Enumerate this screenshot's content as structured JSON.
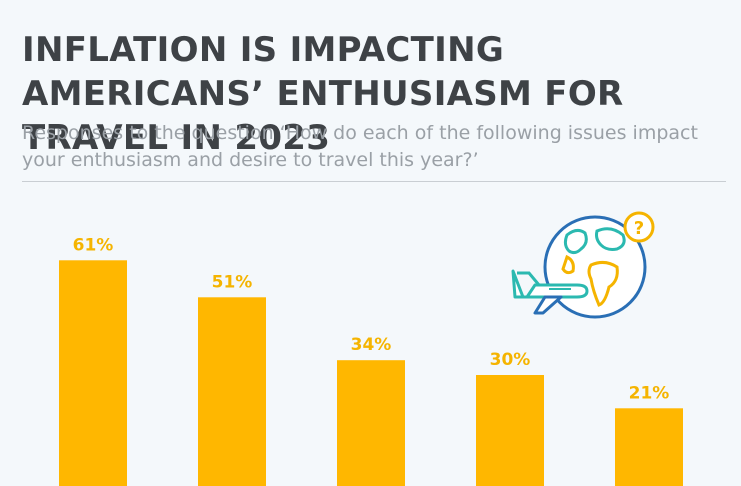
{
  "title": "INFLATION IS IMPACTING AMERICANS’ ENTHUSIASM FOR TRAVEL IN 2023",
  "subtitle": "Responses to the question ‘How do each of the following issues impact your enthusiasm and desire to travel this year?’",
  "colors": {
    "bar": "#ffb700",
    "label": "#f5b400",
    "title": "#3e4246",
    "subtitle": "#9aa0a6"
  },
  "icons": {
    "illustration": "globe-airplane-question-icon"
  },
  "chart_data": {
    "type": "bar",
    "categories": [],
    "values": [
      61,
      51,
      34,
      30,
      21
    ],
    "labels": [
      "61%",
      "51%",
      "34%",
      "30%",
      "21%"
    ],
    "ylim": [
      0,
      70
    ],
    "grid": false,
    "title": "",
    "xlabel": "",
    "ylabel": ""
  }
}
